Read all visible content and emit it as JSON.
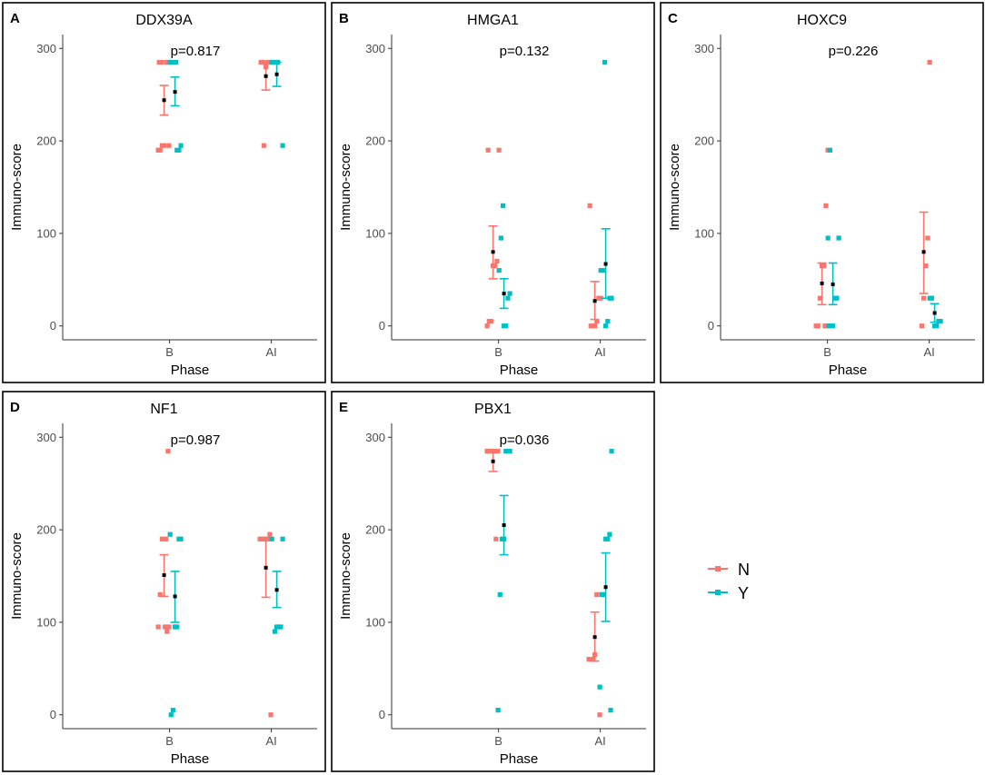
{
  "colors": {
    "N": "#f8766d",
    "Y": "#00bfc4",
    "mean": "#000000",
    "frame": "#000000",
    "axis": "#333333"
  },
  "legend": {
    "items": [
      {
        "key": "N",
        "label": "N"
      },
      {
        "key": "Y",
        "label": "Y"
      }
    ]
  },
  "chart_data": [
    {
      "type": "scatter",
      "panel_letter": "A",
      "title": "DDX39A",
      "annotation": "p=0.817",
      "xlabel": "Phase",
      "ylabel": "Immuno-score",
      "categories": [
        "B",
        "AI"
      ],
      "ylim": [
        -15,
        315
      ],
      "yticks": [
        0,
        100,
        200,
        300
      ],
      "series": [
        {
          "name": "N",
          "group": "B",
          "points": [
            285,
            285,
            285,
            285,
            285,
            195,
            195,
            190,
            190,
            195
          ],
          "mean": 244,
          "err": [
            228,
            260
          ]
        },
        {
          "name": "Y",
          "group": "B",
          "points": [
            285,
            285,
            285,
            285,
            195,
            190,
            190
          ],
          "mean": 253,
          "err": [
            238,
            269
          ]
        },
        {
          "name": "N",
          "group": "AI",
          "points": [
            285,
            285,
            285,
            285,
            285,
            280,
            195
          ],
          "mean": 270,
          "err": [
            255,
            285
          ]
        },
        {
          "name": "Y",
          "group": "AI",
          "points": [
            285,
            285,
            285,
            285,
            195
          ],
          "mean": 272,
          "err": [
            259,
            285
          ]
        }
      ]
    },
    {
      "type": "scatter",
      "panel_letter": "B",
      "title": "HMGA1",
      "annotation": "p=0.132",
      "xlabel": "Phase",
      "ylabel": "Immuno-score",
      "categories": [
        "B",
        "AI"
      ],
      "ylim": [
        -15,
        315
      ],
      "yticks": [
        0,
        100,
        200,
        300
      ],
      "series": [
        {
          "name": "N",
          "group": "B",
          "points": [
            190,
            190,
            70,
            65,
            65,
            5,
            5,
            0
          ],
          "mean": 80,
          "err": [
            51,
            108
          ]
        },
        {
          "name": "Y",
          "group": "B",
          "points": [
            130,
            95,
            60,
            35,
            30,
            0,
            0
          ],
          "mean": 35,
          "err": [
            19,
            51
          ]
        },
        {
          "name": "N",
          "group": "AI",
          "points": [
            130,
            30,
            30,
            5,
            0,
            0,
            0
          ],
          "mean": 27,
          "err": [
            7,
            48
          ]
        },
        {
          "name": "Y",
          "group": "AI",
          "points": [
            285,
            60,
            60,
            30,
            30,
            5,
            0
          ],
          "mean": 67,
          "err": [
            30,
            105
          ]
        }
      ]
    },
    {
      "type": "scatter",
      "panel_letter": "C",
      "title": "HOXC9",
      "annotation": "p=0.226",
      "xlabel": "Phase",
      "ylabel": "Immuno-score",
      "categories": [
        "B",
        "AI"
      ],
      "ylim": [
        -15,
        315
      ],
      "yticks": [
        0,
        100,
        200,
        300
      ],
      "series": [
        {
          "name": "N",
          "group": "B",
          "points": [
            190,
            130,
            65,
            65,
            30,
            0,
            0,
            0,
            0
          ],
          "mean": 46,
          "err": [
            23,
            68
          ]
        },
        {
          "name": "Y",
          "group": "B",
          "points": [
            190,
            95,
            95,
            30,
            30,
            0,
            0,
            0
          ],
          "mean": 45,
          "err": [
            23,
            68
          ]
        },
        {
          "name": "N",
          "group": "AI",
          "points": [
            285,
            95,
            65,
            30,
            0
          ],
          "mean": 80,
          "err": [
            35,
            123
          ]
        },
        {
          "name": "Y",
          "group": "AI",
          "points": [
            30,
            30,
            5,
            5,
            0,
            0
          ],
          "mean": 14,
          "err": [
            4,
            24
          ]
        }
      ]
    },
    {
      "type": "scatter",
      "panel_letter": "D",
      "title": "NF1",
      "annotation": "p=0.987",
      "xlabel": "Phase",
      "ylabel": "Immuno-score",
      "categories": [
        "B",
        "AI"
      ],
      "ylim": [
        -15,
        315
      ],
      "yticks": [
        0,
        100,
        200,
        300
      ],
      "series": [
        {
          "name": "N",
          "group": "B",
          "points": [
            285,
            190,
            190,
            190,
            130,
            95,
            95,
            90,
            95
          ],
          "mean": 151,
          "err": [
            128,
            173
          ]
        },
        {
          "name": "Y",
          "group": "B",
          "points": [
            195,
            190,
            190,
            95,
            95,
            5,
            0
          ],
          "mean": 128,
          "err": [
            100,
            155
          ]
        },
        {
          "name": "N",
          "group": "AI",
          "points": [
            195,
            190,
            190,
            190,
            190,
            190,
            0
          ],
          "mean": 159,
          "err": [
            127,
            190
          ]
        },
        {
          "name": "Y",
          "group": "AI",
          "points": [
            190,
            190,
            95,
            95,
            95,
            90
          ],
          "mean": 135,
          "err": [
            116,
            155
          ]
        }
      ]
    },
    {
      "type": "scatter",
      "panel_letter": "E",
      "title": "PBX1",
      "annotation": "p=0.036",
      "xlabel": "Phase",
      "ylabel": "Immuno-score",
      "categories": [
        "B",
        "AI"
      ],
      "ylim": [
        -15,
        315
      ],
      "yticks": [
        0,
        100,
        200,
        300
      ],
      "series": [
        {
          "name": "N",
          "group": "B",
          "points": [
            285,
            285,
            285,
            285,
            285,
            285,
            190
          ],
          "mean": 274,
          "err": [
            263,
            285
          ]
        },
        {
          "name": "Y",
          "group": "B",
          "points": [
            285,
            285,
            285,
            190,
            190,
            130,
            5
          ],
          "mean": 205,
          "err": [
            173,
            237
          ]
        },
        {
          "name": "N",
          "group": "AI",
          "points": [
            130,
            65,
            60,
            60,
            60,
            0
          ],
          "mean": 84,
          "err": [
            58,
            111
          ]
        },
        {
          "name": "Y",
          "group": "AI",
          "points": [
            285,
            195,
            190,
            190,
            130,
            130,
            30,
            5
          ],
          "mean": 138,
          "err": [
            101,
            175
          ]
        }
      ]
    }
  ]
}
